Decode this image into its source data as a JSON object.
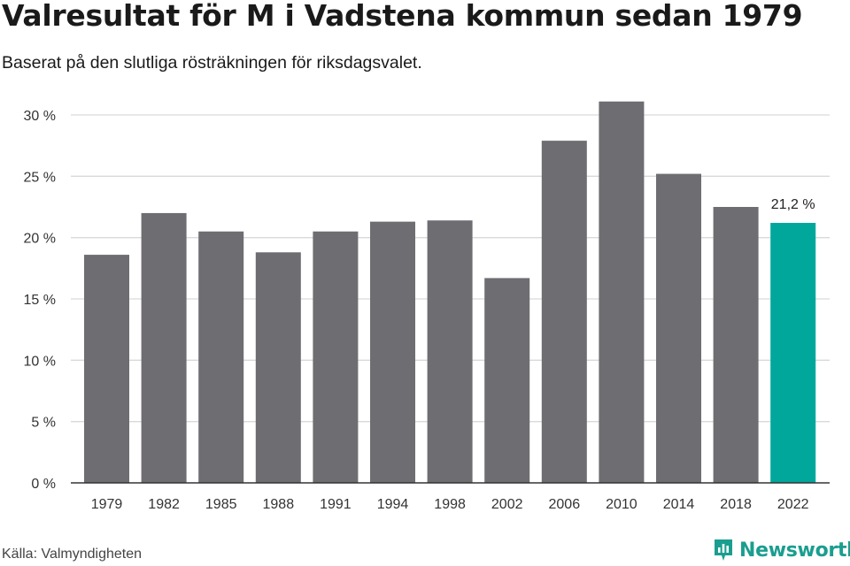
{
  "header": {
    "title": "Valresultat för M i Vadstena kommun sedan 1979",
    "subtitle": "Baserat på den slutliga rösträkningen för riksdagsvalet."
  },
  "footer": {
    "source": "Källa: Valmyndigheten",
    "brand": "Newsworthy",
    "brand_icon": "newsworthy-bar-logo-icon"
  },
  "colors": {
    "bar": "#6e6d72",
    "highlight": "#00a79a",
    "grid": "#d9d9d9",
    "axis": "#333333",
    "brand": "#1a9e8f"
  },
  "chart_data": {
    "type": "bar",
    "categories": [
      "1979",
      "1982",
      "1985",
      "1988",
      "1991",
      "1994",
      "1998",
      "2002",
      "2006",
      "2010",
      "2014",
      "2018",
      "2022"
    ],
    "values": [
      18.6,
      22.0,
      20.5,
      18.8,
      20.5,
      21.3,
      21.4,
      16.7,
      27.9,
      31.1,
      25.2,
      22.5,
      21.2
    ],
    "highlight_index": 12,
    "data_labels": [
      {
        "index": 12,
        "text": "21,2 %"
      }
    ],
    "ylim": [
      0,
      30
    ],
    "yticks": [
      0,
      5,
      10,
      15,
      20,
      25,
      30
    ],
    "ytick_labels": [
      "0 %",
      "5 %",
      "10 %",
      "15 %",
      "20 %",
      "25 %",
      "30 %"
    ],
    "xlabel": "",
    "ylabel": "",
    "grid": true,
    "legend": "none"
  }
}
